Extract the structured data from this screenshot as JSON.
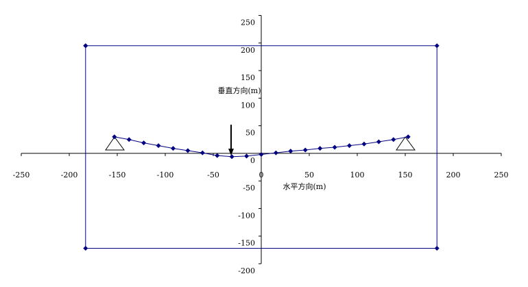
{
  "chart_data": {
    "type": "scatter",
    "x_axis_label": "水平方向(m)",
    "y_axis_label": "垂直方向(m)",
    "xlim": [
      -250,
      250
    ],
    "ylim": [
      -200,
      250
    ],
    "xticks": [
      -250,
      -200,
      -150,
      -100,
      -50,
      0,
      50,
      100,
      150,
      200,
      250
    ],
    "yticks": [
      -200,
      -150,
      -100,
      -50,
      0,
      50,
      100,
      150,
      200,
      250
    ],
    "grid": false,
    "series": [
      {
        "color": "#000080",
        "x": [
          -183,
          183,
          183,
          -183,
          -183
        ],
        "values": [
          195,
          195,
          -172,
          -172,
          195
        ]
      },
      {
        "color": "#000080",
        "x": [
          -153,
          -137.7,
          -122.4,
          -107.1,
          -91.8,
          -76.5,
          -61.2,
          -45.9,
          -30.6,
          -15.3,
          0,
          15.3,
          30.6,
          45.9,
          61.2,
          76.5,
          91.8,
          107.1,
          122.4,
          137.7,
          153
        ],
        "values": [
          30,
          25,
          19,
          14,
          9,
          5,
          1,
          -4,
          -6,
          -5,
          -2,
          1,
          4,
          6,
          9,
          11,
          14,
          17,
          21,
          25,
          30
        ]
      }
    ]
  }
}
